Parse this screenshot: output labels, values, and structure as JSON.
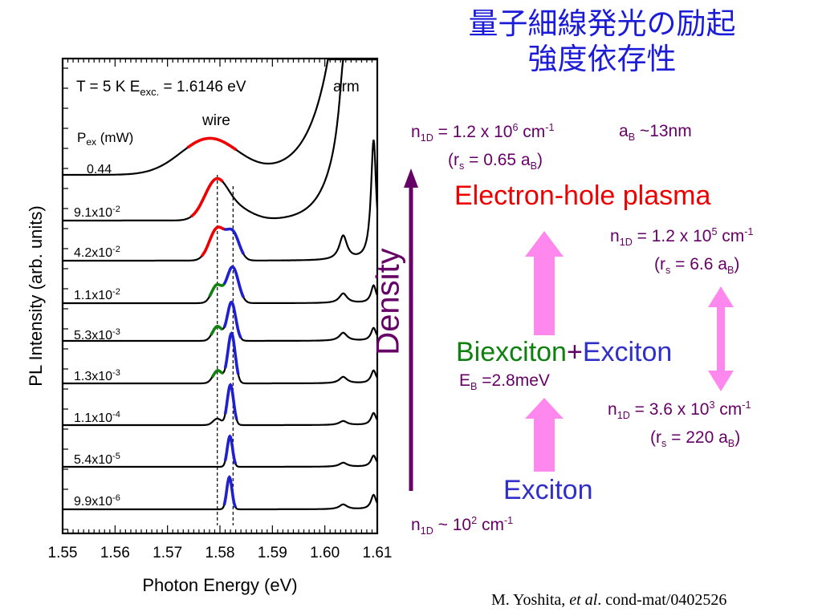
{
  "slide": {
    "title_line1": "量子細線発光の励起",
    "title_line2": "強度依存性",
    "citation_author": "M. Yoshita, ",
    "citation_etal": "et al",
    "citation_rest": ".   cond-mat/0402526"
  },
  "diagram": {
    "density_label": "Density",
    "plasma_label": "Electron-hole plasma",
    "biexciton_label": "Biexciton",
    "plus": "+",
    "exciton_label": "Exciton",
    "exciton_bottom_label": "Exciton",
    "eb_label": "E",
    "eb_sub": "B",
    "eb_value": " =2.8meV",
    "top_density": {
      "n": "n",
      "sub": "1D",
      "eq": " = 1.2 x 10",
      "sup": "6",
      "unit": " cm",
      "unit_sup": "-1"
    },
    "top_ab": {
      "a": "a",
      "sub": "B",
      "val": " ~13nm"
    },
    "top_rs": {
      "open": "(r",
      "sub": "s",
      "val": " = 0.65 a",
      "sub2": "B",
      "close": ")"
    },
    "mid_density": {
      "n": "n",
      "sub": "1D",
      "eq": " = 1.2 x 10",
      "sup": "5",
      "unit": " cm",
      "unit_sup": "-1"
    },
    "mid_rs": {
      "open": "(r",
      "sub": "s",
      "val": " = 6.6 a",
      "sub2": "B",
      "close": ")"
    },
    "low_density": {
      "n": "n",
      "sub": "1D",
      "eq": " = 3.6 x 10",
      "sup": "3",
      "unit": " cm",
      "unit_sup": "-1"
    },
    "low_rs": {
      "open": "(r",
      "sub": "s",
      "val": " = 220 a",
      "sub2": "B",
      "close": ")"
    },
    "bottom_density": {
      "n": "n",
      "sub": "1D",
      "eq": " ~ 10",
      "sup": "2",
      "unit": " cm",
      "unit_sup": "-1"
    },
    "colors": {
      "plasma": "#ee0000",
      "biexciton": "#108010",
      "exciton": "#3030c8",
      "notes": "#660066",
      "arrow": "#ff88ee",
      "axis_arrow": "#660066"
    }
  },
  "chart_data": {
    "type": "line",
    "conditions_text": "T = 5 K  E",
    "conditions_sub": "exc.",
    "conditions_value": " = 1.6146 eV",
    "wire_label": "wire",
    "arm_label": "arm",
    "legend_header": "P",
    "legend_header_sub": "ex",
    "legend_header_unit": " (mW)",
    "xlabel": "Photon Energy (eV)",
    "ylabel": "PL Intensity (arb. units)",
    "xlim": [
      1.55,
      1.61
    ],
    "xticks": [
      "1.55",
      "1.56",
      "1.57",
      "1.58",
      "1.59",
      "1.60",
      "1.61"
    ],
    "dashed_lines_x": [
      1.5795,
      1.5825
    ],
    "colors": {
      "curve": "#000000",
      "plasma": "#ee0000",
      "biexciton": "#108010",
      "exciton": "#2020d0"
    },
    "series": [
      {
        "name": "0.44",
        "label": "0.44"
      },
      {
        "name": "9.1x10-2",
        "label_base": "9.1x10",
        "label_exp": "-2"
      },
      {
        "name": "4.2x10-2",
        "label_base": "4.2x10",
        "label_exp": "-2"
      },
      {
        "name": "1.1x10-2",
        "label_base": "1.1x10",
        "label_exp": "-2"
      },
      {
        "name": "5.3x10-3",
        "label_base": "5.3x10",
        "label_exp": "-3"
      },
      {
        "name": "1.3x10-3",
        "label_base": "1.3x10",
        "label_exp": "-3"
      },
      {
        "name": "1.1x10-4",
        "label_base": "1.1x10",
        "label_exp": "-4"
      },
      {
        "name": "5.4x10-5",
        "label_base": "5.4x10",
        "label_exp": "-5"
      },
      {
        "name": "9.9x10-6",
        "label_base": "9.9x10",
        "label_exp": "-6"
      }
    ]
  }
}
